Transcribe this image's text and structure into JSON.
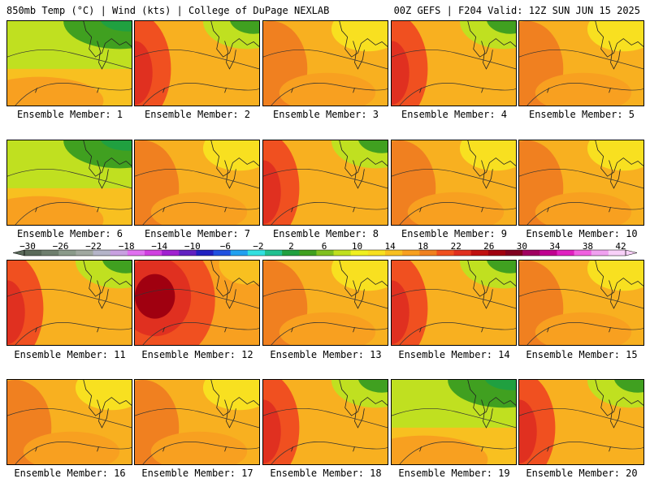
{
  "header": {
    "left": "850mb Temp (°C) | Wind (kts) | College of DuPage NEXLAB",
    "right": "00Z GEFS | F204 Valid: 12Z SUN JUN 15 2025"
  },
  "colorbar": {
    "tick_labels": [
      "-30",
      "-26",
      "-22",
      "-18",
      "-14",
      "-10",
      "-6",
      "-2",
      "2",
      "6",
      "10",
      "14",
      "18",
      "22",
      "26",
      "30",
      "34",
      "38",
      "42"
    ],
    "colors": [
      "#5a6a5a",
      "#6e7e6e",
      "#8a9a8a",
      "#a0a8a0",
      "#b4b4c8",
      "#c8a0e0",
      "#e070f0",
      "#d040e0",
      "#a020d0",
      "#6020c0",
      "#2020c0",
      "#2050e0",
      "#20a0f0",
      "#30e0e0",
      "#20c090",
      "#20a040",
      "#40a020",
      "#80c020",
      "#c0e020",
      "#f0f020",
      "#f8e020",
      "#f8c020",
      "#f8a020",
      "#f08020",
      "#f05020",
      "#e03020",
      "#c01010",
      "#a00010",
      "#800020",
      "#a00060",
      "#c00090",
      "#e020c0",
      "#f060e0",
      "#f0a0f0",
      "#f8d0f8"
    ]
  },
  "members": [
    {
      "label": "Ensemble Member: 1",
      "style": "cool"
    },
    {
      "label": "Ensemble Member: 2",
      "style": "hotwest"
    },
    {
      "label": "Ensemble Member: 3",
      "style": "warm"
    },
    {
      "label": "Ensemble Member: 4",
      "style": "hotwest"
    },
    {
      "label": "Ensemble Member: 5",
      "style": "warm"
    },
    {
      "label": "Ensemble Member: 6",
      "style": "cool"
    },
    {
      "label": "Ensemble Member: 7",
      "style": "warm"
    },
    {
      "label": "Ensemble Member: 8",
      "style": "hotwest"
    },
    {
      "label": "Ensemble Member: 9",
      "style": "warm"
    },
    {
      "label": "Ensemble Member: 10",
      "style": "warm"
    },
    {
      "label": "Ensemble Member: 11",
      "style": "hotwest"
    },
    {
      "label": "Ensemble Member: 12",
      "style": "hot"
    },
    {
      "label": "Ensemble Member: 13",
      "style": "warm"
    },
    {
      "label": "Ensemble Member: 14",
      "style": "hotwest"
    },
    {
      "label": "Ensemble Member: 15",
      "style": "warm"
    },
    {
      "label": "Ensemble Member: 16",
      "style": "warm"
    },
    {
      "label": "Ensemble Member: 17",
      "style": "warm"
    },
    {
      "label": "Ensemble Member: 18",
      "style": "hotwest"
    },
    {
      "label": "Ensemble Member: 19",
      "style": "cool"
    },
    {
      "label": "Ensemble Member: 20",
      "style": "hotwest"
    }
  ]
}
